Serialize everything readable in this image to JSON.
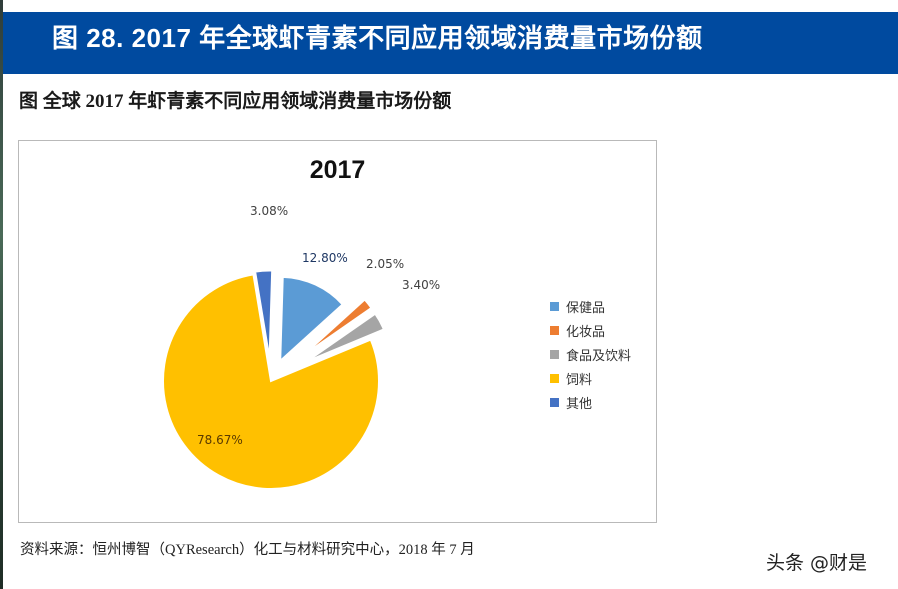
{
  "banner": {
    "title": "图 28. 2017 年全球虾青素不同应用领域消费量市场份额"
  },
  "figure": {
    "caption": "图  全球 2017 年虾青素不同应用领域消费量市场份额"
  },
  "source": "资料来源：恒州博智（QYResearch）化工与材料研究中心，2018 年 7 月",
  "watermark": "头条 @财是",
  "colors": {
    "banner": "#004a9f",
    "保健品": "#5b9bd5",
    "化妆品": "#ed7d31",
    "食品及饮料": "#a5a5a5",
    "饲料": "#ffc000",
    "其他": "#4472c4"
  },
  "chart_data": {
    "type": "pie",
    "title": "2017",
    "categories": [
      "保健品",
      "化妆品",
      "食品及饮料",
      "饲料",
      "其他"
    ],
    "values": [
      12.8,
      2.05,
      3.4,
      78.67,
      3.08
    ],
    "unit": "%",
    "data_labels": [
      "12.80%",
      "2.05%",
      "3.40%",
      "78.67%",
      "3.08%"
    ],
    "exploded": true,
    "legend_position": "right",
    "colors": [
      "#5b9bd5",
      "#ed7d31",
      "#a5a5a5",
      "#ffc000",
      "#4472c4"
    ]
  },
  "legend": [
    {
      "label": "保健品",
      "color": "#5b9bd5"
    },
    {
      "label": "化妆品",
      "color": "#ed7d31"
    },
    {
      "label": "食品及饮料",
      "color": "#a5a5a5"
    },
    {
      "label": "饲料",
      "color": "#ffc000"
    },
    {
      "label": "其他",
      "color": "#4472c4"
    }
  ]
}
